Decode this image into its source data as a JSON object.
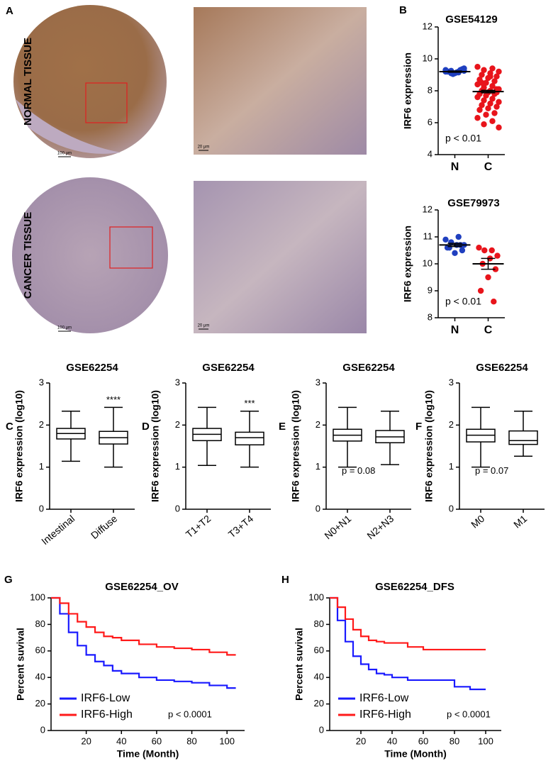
{
  "panel_labels": [
    "A",
    "B",
    "C",
    "D",
    "E",
    "F",
    "G",
    "H"
  ],
  "images": {
    "row_labels": [
      "NORMAL TISSUE",
      "CANCER TISSUE"
    ],
    "scale_labels": [
      "100 μm",
      "20 μm",
      "100 μm",
      "20 μm"
    ]
  },
  "chart_data": [
    {
      "type": "dot",
      "title": "GSE54129",
      "y_label": "IRF6 expression",
      "annotation": "p < 0.01",
      "categories": [
        "N",
        "C"
      ],
      "colors": [
        "#1f3fbf",
        "#e8141b"
      ],
      "points": [
        [
          9.3,
          9.2,
          9.1,
          9.25,
          9.15,
          9.2,
          9.35,
          9.1,
          9.2,
          9.3,
          9.05,
          9.2,
          9.15,
          9.25,
          9.4
        ],
        [
          9.5,
          9.4,
          9.3,
          9.2,
          9.1,
          9.0,
          8.9,
          8.8,
          8.7,
          8.6,
          8.5,
          8.4,
          8.3,
          8.2,
          8.1,
          8.0,
          8.0,
          7.9,
          7.9,
          7.8,
          7.8,
          7.7,
          7.6,
          7.5,
          7.4,
          7.3,
          7.2,
          7.1,
          7.0,
          6.9,
          6.8,
          6.6,
          6.5,
          6.3,
          6.1,
          5.9,
          5.7,
          8.9,
          8.5,
          8.1
        ]
      ],
      "means": [
        9.2,
        7.95
      ],
      "sems": [
        0.04,
        0.08
      ],
      "ylim": [
        4,
        12
      ],
      "yticks": [
        4,
        6,
        8,
        10,
        12
      ]
    },
    {
      "type": "dot",
      "title": "GSE79973",
      "y_label": "IRF6 expression",
      "annotation": "p < 0.01",
      "categories": [
        "N",
        "C"
      ],
      "colors": [
        "#1f3fbf",
        "#e8141b"
      ],
      "points": [
        [
          10.9,
          11.0,
          10.8,
          10.7,
          10.7,
          10.6,
          10.5,
          10.4,
          10.6,
          10.7
        ],
        [
          10.6,
          10.5,
          10.5,
          10.3,
          10.2,
          10.0,
          9.8,
          9.5,
          9.0,
          8.6
        ]
      ],
      "means": [
        10.7,
        10.0
      ],
      "sems": [
        0.06,
        0.2
      ],
      "ylim": [
        8,
        12
      ],
      "yticks": [
        8,
        9,
        10,
        11,
        12
      ]
    },
    {
      "type": "box",
      "title": "GSE62254",
      "y_label": "IRF6 expression (log10)",
      "annotation": "****",
      "categories": [
        "Intestinal",
        "Diffuse"
      ],
      "boxes": [
        {
          "min": 1.14,
          "q1": 1.67,
          "median": 1.8,
          "q3": 1.92,
          "max": 2.33
        },
        {
          "min": 1.0,
          "q1": 1.55,
          "median": 1.7,
          "q3": 1.85,
          "max": 2.42
        }
      ],
      "ylim": [
        0,
        3
      ],
      "yticks": [
        0,
        1,
        2,
        3
      ]
    },
    {
      "type": "box",
      "title": "GSE62254",
      "y_label": "IRF6 expression (log10)",
      "annotation": "***",
      "categories": [
        "T1+T2",
        "T3+T4"
      ],
      "boxes": [
        {
          "min": 1.04,
          "q1": 1.63,
          "median": 1.78,
          "q3": 1.92,
          "max": 2.42
        },
        {
          "min": 1.0,
          "q1": 1.53,
          "median": 1.7,
          "q3": 1.83,
          "max": 2.33
        }
      ],
      "ylim": [
        0,
        3
      ],
      "yticks": [
        0,
        1,
        2,
        3
      ]
    },
    {
      "type": "box",
      "title": "GSE62254",
      "y_label": "IRF6 expression (log10)",
      "annotation": "p = 0.08",
      "categories": [
        "N0+N1",
        "N2+N3"
      ],
      "boxes": [
        {
          "min": 1.0,
          "q1": 1.62,
          "median": 1.76,
          "q3": 1.9,
          "max": 2.42
        },
        {
          "min": 1.06,
          "q1": 1.58,
          "median": 1.72,
          "q3": 1.87,
          "max": 2.33
        }
      ],
      "ylim": [
        0,
        3
      ],
      "yticks": [
        0,
        1,
        2,
        3
      ]
    },
    {
      "type": "box",
      "title": "GSE62254",
      "y_label": "IRF6 expression (log10)",
      "annotation": "p = 0.07",
      "categories": [
        "M0",
        "M1"
      ],
      "boxes": [
        {
          "min": 1.0,
          "q1": 1.6,
          "median": 1.76,
          "q3": 1.9,
          "max": 2.42
        },
        {
          "min": 1.26,
          "q1": 1.54,
          "median": 1.63,
          "q3": 1.86,
          "max": 2.33
        }
      ],
      "ylim": [
        0,
        3
      ],
      "yticks": [
        0,
        1,
        2,
        3
      ]
    },
    {
      "type": "line",
      "title": "GSE62254_OV",
      "x_label": "Time (Month)",
      "y_label": "Percent suvival",
      "annotation": "p < 0.0001",
      "x": [
        0,
        5,
        10,
        15,
        20,
        25,
        30,
        35,
        40,
        50,
        60,
        70,
        80,
        90,
        100,
        105
      ],
      "series": [
        {
          "name": "IRF6-Low",
          "color": "#1a1aff",
          "values": [
            100,
            88,
            74,
            64,
            57,
            52,
            49,
            45,
            43,
            40,
            38,
            37,
            36,
            34,
            32,
            32
          ]
        },
        {
          "name": "IRF6-High",
          "color": "#ff1a1a",
          "values": [
            100,
            96,
            88,
            82,
            78,
            74,
            71,
            70,
            68,
            65,
            63,
            62,
            61,
            59,
            57,
            57
          ]
        }
      ],
      "xlim": [
        0,
        110
      ],
      "xticks": [
        20,
        40,
        60,
        80,
        100
      ],
      "ylim": [
        0,
        100
      ],
      "yticks": [
        0,
        20,
        40,
        60,
        80,
        100
      ]
    },
    {
      "type": "line",
      "title": "GSE62254_DFS",
      "x_label": "Time (Month)",
      "y_label": "Percent suvival",
      "annotation": "p < 0.0001",
      "x": [
        0,
        5,
        10,
        15,
        20,
        25,
        30,
        35,
        40,
        50,
        60,
        70,
        80,
        90,
        100
      ],
      "series": [
        {
          "name": "IRF6-Low",
          "color": "#1a1aff",
          "values": [
            100,
            83,
            67,
            56,
            50,
            46,
            43,
            42,
            40,
            38,
            38,
            38,
            33,
            31,
            31
          ]
        },
        {
          "name": "IRF6-High",
          "color": "#ff1a1a",
          "values": [
            100,
            93,
            84,
            76,
            71,
            68,
            67,
            66,
            66,
            63,
            61,
            61,
            61,
            61,
            61
          ]
        }
      ],
      "xlim": [
        0,
        110
      ],
      "xticks": [
        20,
        40,
        60,
        80,
        100
      ],
      "ylim": [
        0,
        100
      ],
      "yticks": [
        0,
        20,
        40,
        60,
        80,
        100
      ]
    }
  ]
}
